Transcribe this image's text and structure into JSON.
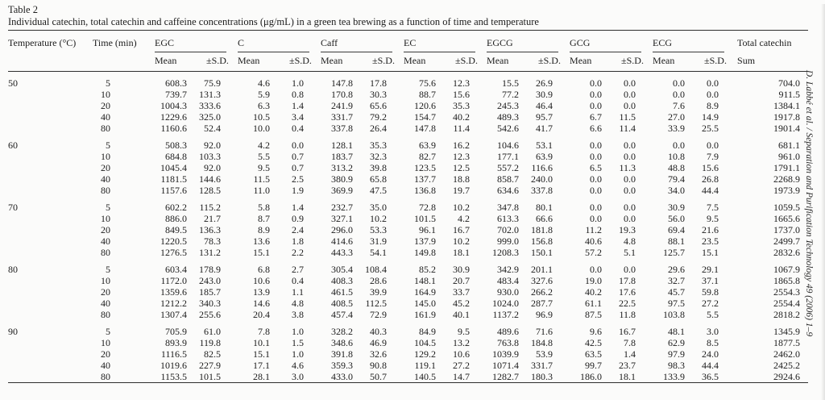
{
  "doc": {
    "label": "Table 2",
    "caption": "Individual catechin, total catechin and caffeine concentrations (μg/mL) in a green tea brewing as a function of time and temperature",
    "sidenote": "D. Labbé et al. / Separation and Purification Technology 49 (2006) 1–9"
  },
  "table": {
    "row_headers": {
      "temperature": "Temperature (°C)",
      "time": "Time (min)"
    },
    "groups": [
      "EGC",
      "C",
      "Caff",
      "EC",
      "EGCG",
      "GCG",
      "ECG"
    ],
    "sub_headers": {
      "mean": "Mean",
      "sd": "±S.D."
    },
    "total_group": {
      "label": "Total catechin",
      "sub": "Sum"
    },
    "blocks": [
      {
        "temperature": "50",
        "rows": [
          {
            "time": "5",
            "values": [
              "608.3",
              "75.9",
              "4.6",
              "1.0",
              "147.8",
              "17.8",
              "75.6",
              "12.3",
              "15.5",
              "26.9",
              "0.0",
              "0.0",
              "0.0",
              "0.0",
              "704.0"
            ]
          },
          {
            "time": "10",
            "values": [
              "739.7",
              "131.3",
              "5.9",
              "0.8",
              "170.8",
              "30.3",
              "88.7",
              "15.6",
              "77.2",
              "30.9",
              "0.0",
              "0.0",
              "0.0",
              "0.0",
              "911.5"
            ]
          },
          {
            "time": "20",
            "values": [
              "1004.3",
              "333.6",
              "6.3",
              "1.4",
              "241.9",
              "65.6",
              "120.6",
              "35.3",
              "245.3",
              "46.4",
              "0.0",
              "0.0",
              "7.6",
              "8.9",
              "1384.1"
            ]
          },
          {
            "time": "40",
            "values": [
              "1229.6",
              "325.0",
              "10.5",
              "3.4",
              "331.7",
              "79.2",
              "154.7",
              "40.2",
              "489.3",
              "95.7",
              "6.7",
              "11.5",
              "27.0",
              "14.9",
              "1917.8"
            ]
          },
          {
            "time": "80",
            "values": [
              "1160.6",
              "52.4",
              "10.0",
              "0.4",
              "337.8",
              "26.4",
              "147.8",
              "11.4",
              "542.6",
              "41.7",
              "6.6",
              "11.4",
              "33.9",
              "25.5",
              "1901.4"
            ]
          }
        ]
      },
      {
        "temperature": "60",
        "rows": [
          {
            "time": "5",
            "values": [
              "508.3",
              "92.0",
              "4.2",
              "0.0",
              "128.1",
              "35.3",
              "63.9",
              "16.2",
              "104.6",
              "53.1",
              "0.0",
              "0.0",
              "0.0",
              "0.0",
              "681.1"
            ]
          },
          {
            "time": "10",
            "values": [
              "684.8",
              "103.3",
              "5.5",
              "0.7",
              "183.7",
              "32.3",
              "82.7",
              "12.3",
              "177.1",
              "63.9",
              "0.0",
              "0.0",
              "10.8",
              "7.9",
              "961.0"
            ]
          },
          {
            "time": "20",
            "values": [
              "1045.4",
              "92.0",
              "9.5",
              "0.7",
              "313.2",
              "39.8",
              "123.5",
              "12.5",
              "557.2",
              "116.6",
              "6.5",
              "11.3",
              "48.8",
              "15.6",
              "1791.1"
            ]
          },
          {
            "time": "40",
            "values": [
              "1181.5",
              "144.6",
              "11.5",
              "2.5",
              "380.9",
              "65.8",
              "137.7",
              "18.8",
              "858.7",
              "240.0",
              "0.0",
              "0.0",
              "79.4",
              "26.8",
              "2268.9"
            ]
          },
          {
            "time": "80",
            "values": [
              "1157.6",
              "128.5",
              "11.0",
              "1.9",
              "369.9",
              "47.5",
              "136.8",
              "19.7",
              "634.6",
              "337.8",
              "0.0",
              "0.0",
              "34.0",
              "44.4",
              "1973.9"
            ]
          }
        ]
      },
      {
        "temperature": "70",
        "rows": [
          {
            "time": "5",
            "values": [
              "602.2",
              "115.2",
              "5.8",
              "1.4",
              "232.7",
              "35.0",
              "72.8",
              "10.2",
              "347.8",
              "80.1",
              "0.0",
              "0.0",
              "30.9",
              "7.5",
              "1059.5"
            ]
          },
          {
            "time": "10",
            "values": [
              "886.0",
              "21.7",
              "8.7",
              "0.9",
              "327.1",
              "10.2",
              "101.5",
              "4.2",
              "613.3",
              "66.6",
              "0.0",
              "0.0",
              "56.0",
              "9.5",
              "1665.6"
            ]
          },
          {
            "time": "20",
            "values": [
              "849.5",
              "136.3",
              "8.9",
              "2.4",
              "296.0",
              "53.3",
              "96.1",
              "16.7",
              "702.0",
              "181.8",
              "11.2",
              "19.3",
              "69.4",
              "21.6",
              "1737.0"
            ]
          },
          {
            "time": "40",
            "values": [
              "1220.5",
              "78.3",
              "13.6",
              "1.8",
              "414.6",
              "31.9",
              "137.9",
              "10.2",
              "999.0",
              "156.8",
              "40.6",
              "4.8",
              "88.1",
              "23.5",
              "2499.7"
            ]
          },
          {
            "time": "80",
            "values": [
              "1276.5",
              "131.2",
              "15.1",
              "2.2",
              "443.3",
              "54.1",
              "149.8",
              "18.1",
              "1208.3",
              "150.1",
              "57.2",
              "5.1",
              "125.7",
              "15.1",
              "2832.6"
            ]
          }
        ]
      },
      {
        "temperature": "80",
        "rows": [
          {
            "time": "5",
            "values": [
              "603.4",
              "178.9",
              "6.8",
              "2.7",
              "305.4",
              "108.4",
              "85.2",
              "30.9",
              "342.9",
              "201.1",
              "0.0",
              "0.0",
              "29.6",
              "29.1",
              "1067.9"
            ]
          },
          {
            "time": "10",
            "values": [
              "1172.0",
              "243.0",
              "10.6",
              "0.4",
              "408.3",
              "28.6",
              "148.1",
              "20.7",
              "483.4",
              "327.6",
              "19.0",
              "17.8",
              "32.7",
              "37.1",
              "1865.8"
            ]
          },
          {
            "time": "20",
            "values": [
              "1359.6",
              "185.7",
              "13.9",
              "1.1",
              "461.5",
              "39.9",
              "164.9",
              "33.7",
              "930.0",
              "266.2",
              "40.2",
              "17.6",
              "45.7",
              "59.8",
              "2554.3"
            ]
          },
          {
            "time": "40",
            "values": [
              "1212.2",
              "340.3",
              "14.6",
              "4.8",
              "408.5",
              "112.5",
              "145.0",
              "45.2",
              "1024.0",
              "287.7",
              "61.1",
              "22.5",
              "97.5",
              "27.2",
              "2554.4"
            ]
          },
          {
            "time": "80",
            "values": [
              "1307.4",
              "255.6",
              "20.4",
              "3.8",
              "457.4",
              "72.9",
              "161.9",
              "40.1",
              "1137.2",
              "96.9",
              "87.5",
              "11.8",
              "103.8",
              "5.5",
              "2818.2"
            ]
          }
        ]
      },
      {
        "temperature": "90",
        "rows": [
          {
            "time": "5",
            "values": [
              "705.9",
              "61.0",
              "7.8",
              "1.0",
              "328.2",
              "40.3",
              "84.9",
              "9.5",
              "489.6",
              "71.6",
              "9.6",
              "16.7",
              "48.1",
              "3.0",
              "1345.9"
            ]
          },
          {
            "time": "10",
            "values": [
              "893.9",
              "119.8",
              "10.1",
              "1.5",
              "348.6",
              "46.9",
              "104.5",
              "13.2",
              "763.8",
              "184.8",
              "42.5",
              "7.8",
              "62.9",
              "8.5",
              "1877.5"
            ]
          },
          {
            "time": "20",
            "values": [
              "1116.5",
              "82.5",
              "15.1",
              "1.0",
              "391.8",
              "32.6",
              "129.2",
              "10.6",
              "1039.9",
              "53.9",
              "63.5",
              "1.4",
              "97.9",
              "24.0",
              "2462.0"
            ]
          },
          {
            "time": "40",
            "values": [
              "1019.6",
              "227.9",
              "17.1",
              "4.6",
              "359.3",
              "90.8",
              "119.1",
              "27.2",
              "1071.4",
              "331.7",
              "99.7",
              "23.7",
              "98.3",
              "44.4",
              "2425.2"
            ]
          },
          {
            "time": "80",
            "values": [
              "1153.5",
              "101.5",
              "28.1",
              "3.0",
              "433.0",
              "50.7",
              "140.5",
              "14.7",
              "1282.7",
              "180.3",
              "186.0",
              "18.1",
              "133.9",
              "36.5",
              "2924.6"
            ]
          }
        ]
      }
    ]
  }
}
